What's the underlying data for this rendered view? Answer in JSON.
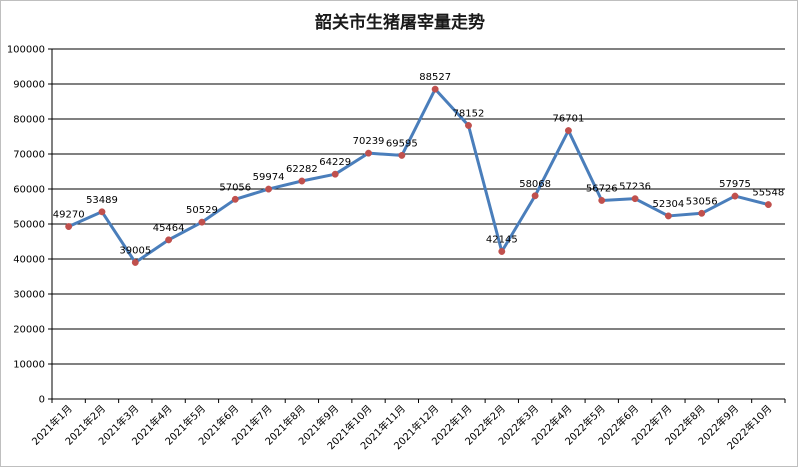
{
  "chart_data": {
    "type": "line",
    "title": "韶关市生猪屠宰量走势",
    "xlabel": "",
    "ylabel": "",
    "ylim": [
      0,
      100000
    ],
    "yticks": [
      0,
      10000,
      20000,
      30000,
      40000,
      50000,
      60000,
      70000,
      80000,
      90000,
      100000
    ],
    "grid": true,
    "legend": "none",
    "categories": [
      "2021年1月",
      "2021年2月",
      "2021年3月",
      "2021年4月",
      "2021年5月",
      "2021年6月",
      "2021年7月",
      "2021年8月",
      "2021年9月",
      "2021年10月",
      "2021年11月",
      "2021年12月",
      "2022年1月",
      "2022年2月",
      "2022年3月",
      "2022年4月",
      "2022年5月",
      "2022年6月",
      "2022年7月",
      "2022年8月",
      "2022年9月",
      "2022年10月"
    ],
    "series": [
      {
        "values": [
          49270,
          53489,
          39005,
          45464,
          50529,
          57056,
          59974,
          62282,
          64229,
          70239,
          69595,
          88527,
          78152,
          42145,
          58068,
          76701,
          56726,
          57236,
          52304,
          53056,
          57975,
          55548
        ],
        "line_color": "#4a7ebb",
        "marker_color": "#c0504d"
      }
    ]
  }
}
